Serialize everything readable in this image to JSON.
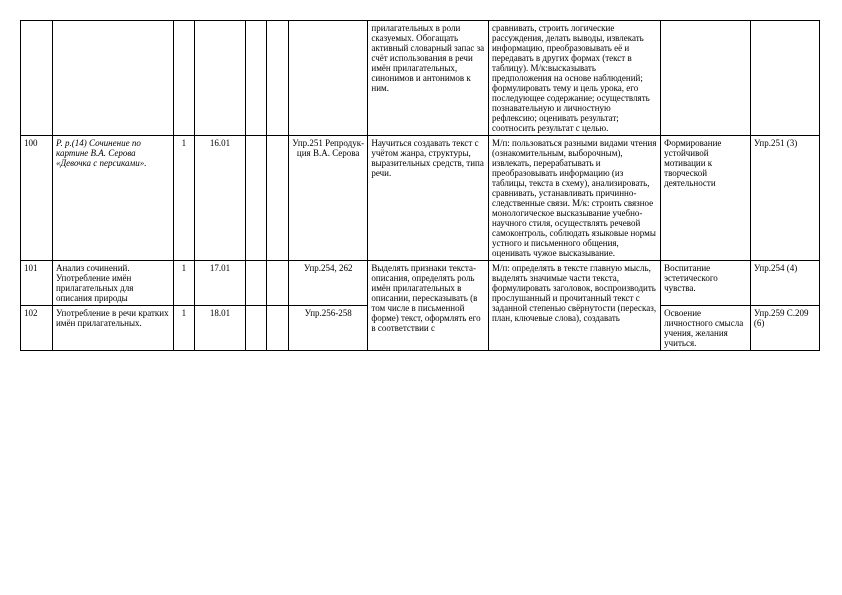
{
  "rows": [
    {
      "num": "",
      "topic": "",
      "hours": "",
      "date": "",
      "material": "",
      "result": "прилагательных в роли сказуемых. Обогащать активный словарный запас за счёт использования в речи имён прилагательных, синонимов и антонимов к ним.",
      "uud": "сравнивать, строить логические рассуждения, делать выводы, извлекать информацию, преобразовывать её и передавать в других формах (текст в таблицу). М/к:высказывать предположения на основе наблюдений; формулировать тему и цель урока, его последующее содержание; осуществлять познавательную и личностную рефлексию; оценивать результат; соотносить результат с целью.",
      "personal": "",
      "hw": ""
    },
    {
      "num": "100",
      "topic_italic": "Р. р.(14) Сочинение по картине В.А. Серова «Девочка с персиками».",
      "hours": "1",
      "date": "16.01",
      "material": "Упр.251 Репродук-ция В.А. Серова",
      "result": "Научиться создавать текст с учётом жанра, структуры, выразительных средств, типа речи.",
      "uud": "М/п: пользоваться разными видами чтения (ознакомительным, выборочным), извлекать, перерабатывать и преобразовывать информацию (из таблицы, текста в схему), анализировать, сравнивать, устанавливать причинно-следственные связи. М/к: строить связное монологическое высказывание учебно-научного стиля, осуществлять речевой самоконтроль, соблюдать языковые нормы устного и письменного общения, оценивать чужое высказывание.",
      "personal": "Формирование устойчивой мотивации к творческой деятельности",
      "hw": "Упр.251 (3)"
    },
    {
      "num": "101",
      "topic": "Анализ сочинений. Употребление имён прилагательных для описания природы",
      "hours": "1",
      "date": "17.01",
      "material": "Упр.254, 262",
      "result": "Выделять признаки текста-описания, определять роль имён прилагательных в",
      "uud": "М/п: определять в тексте главную мысль, выделять значимые части текста, формулировать заголовок, воспроизводить",
      "personal": "Воспитание эстетического чувства.",
      "hw": "Упр.254 (4)"
    },
    {
      "num": "102",
      "topic": "Употребление в речи кратких имён прилагательных.",
      "hours": "1",
      "date": "18.01",
      "material": "Упр.256-258",
      "result": "описании, пересказывать (в том числе в письменной форме) текст, оформлять его в соответствии с",
      "uud": "прослушанный и прочитанный текст с заданной степенью свёрнутости (пересказ, план, ключевые слова), создавать",
      "personal": "Освоение личностного смысла учения, желания учиться.",
      "hw": "Упр.259 С.209 (6)"
    }
  ]
}
